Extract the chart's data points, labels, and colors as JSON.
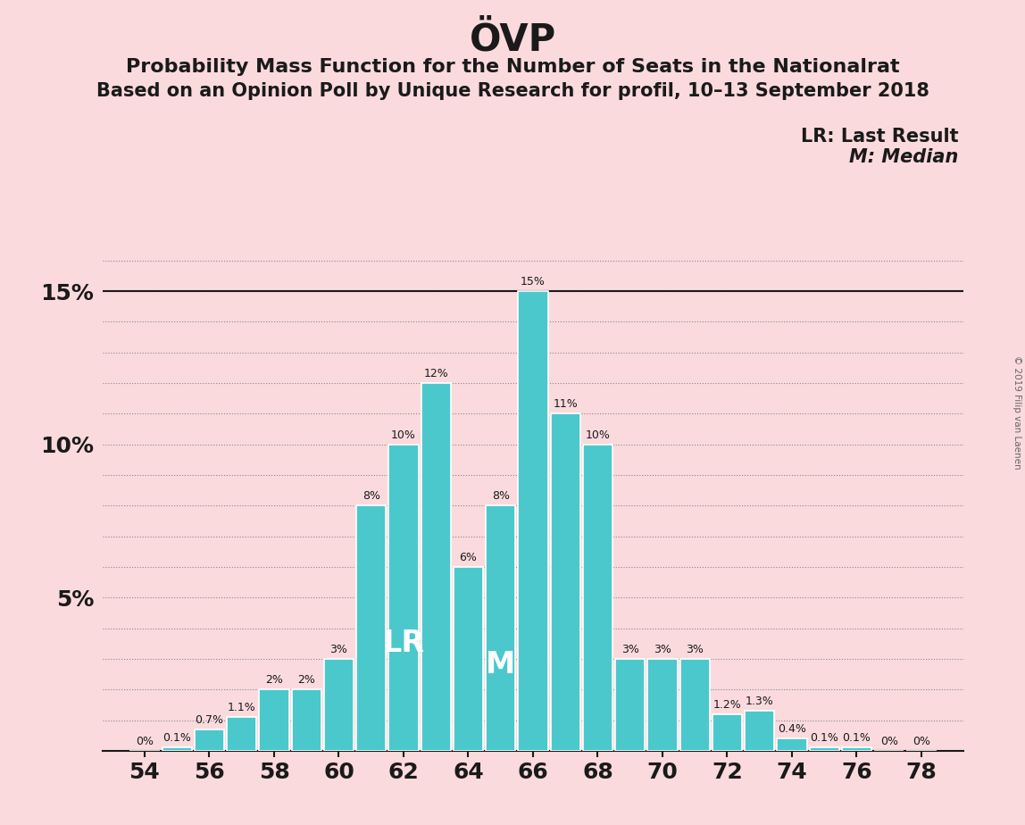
{
  "title": "ÖVP",
  "subtitle1": "Probability Mass Function for the Number of Seats in the Nationalrat",
  "subtitle2": "Based on an Opinion Poll by Unique Research for profil, 10–13 September 2018",
  "copyright": "© 2019 Filip van Laenen",
  "seats": [
    54,
    55,
    56,
    57,
    58,
    59,
    60,
    61,
    62,
    63,
    64,
    65,
    66,
    67,
    68,
    69,
    70,
    71,
    72,
    73,
    74,
    75,
    76,
    77,
    78
  ],
  "values": [
    0.0,
    0.1,
    0.7,
    1.1,
    2.0,
    2.0,
    3.0,
    8.0,
    10.0,
    12.0,
    6.0,
    8.0,
    15.0,
    11.0,
    10.0,
    3.0,
    3.0,
    3.0,
    1.2,
    1.3,
    0.4,
    0.1,
    0.1,
    0.0,
    0.0
  ],
  "labels": [
    "0%",
    "0.1%",
    "0.7%",
    "1.1%",
    "2%",
    "2%",
    "3%",
    "8%",
    "10%",
    "12%",
    "6%",
    "8%",
    "15%",
    "11%",
    "10%",
    "3%",
    "3%",
    "3%",
    "1.2%",
    "1.3%",
    "0.4%",
    "0.1%",
    "0.1%",
    "0%",
    "0%"
  ],
  "bar_color": "#4bc8cc",
  "background_color": "#fadadd",
  "text_color": "#1a1a1a",
  "lr_seat": 62,
  "median_seat": 65,
  "lr_label": "LR",
  "median_label": "M",
  "legend_lr": "LR: Last Result",
  "legend_m": "M: Median",
  "ytick_values": [
    0,
    5,
    10,
    15
  ],
  "ylim": [
    0,
    17.5
  ],
  "xlabel_seats": [
    54,
    56,
    58,
    60,
    62,
    64,
    66,
    68,
    70,
    72,
    74,
    76,
    78
  ],
  "grid_yticks": [
    1,
    2,
    3,
    4,
    5,
    6,
    7,
    8,
    9,
    10,
    11,
    12,
    13,
    14,
    15,
    16
  ],
  "bar_width": 0.92
}
